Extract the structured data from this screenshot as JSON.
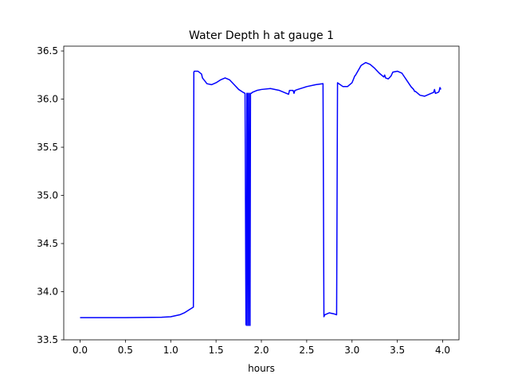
{
  "chart_data": {
    "type": "line",
    "title": "Water Depth h at gauge 1",
    "xlabel": "hours",
    "ylabel": "",
    "xlim": [
      -0.18,
      4.18
    ],
    "ylim": [
      33.5,
      36.55
    ],
    "x_ticks": [
      0.0,
      0.5,
      1.0,
      1.5,
      2.0,
      2.5,
      3.0,
      3.5,
      4.0
    ],
    "x_tick_labels": [
      "0.0",
      "0.5",
      "1.0",
      "1.5",
      "2.0",
      "2.5",
      "3.0",
      "3.5",
      "4.0"
    ],
    "y_ticks": [
      33.5,
      34.0,
      34.5,
      35.0,
      35.5,
      36.0,
      36.5
    ],
    "y_tick_labels": [
      "33.5",
      "34.0",
      "34.5",
      "35.0",
      "35.5",
      "36.0",
      "36.5"
    ],
    "grid": false,
    "line_color": "#0000ff",
    "series": [
      {
        "x": [
          0.0,
          0.5,
          0.9,
          1.0,
          1.1,
          1.15,
          1.2,
          1.25,
          1.255,
          1.26,
          1.3,
          1.34,
          1.35,
          1.4,
          1.45,
          1.5,
          1.55,
          1.6,
          1.65,
          1.7,
          1.75,
          1.8,
          1.82,
          1.83,
          1.835,
          1.84,
          1.845,
          1.85,
          1.855,
          1.86,
          1.865,
          1.87,
          1.875,
          1.88,
          1.885,
          1.89,
          1.9,
          1.95,
          2.0,
          2.1,
          2.2,
          2.3,
          2.31,
          2.35,
          2.36,
          2.37,
          2.4,
          2.5,
          2.6,
          2.68,
          2.69,
          2.7,
          2.75,
          2.8,
          2.83,
          2.84,
          2.9,
          2.95,
          3.0,
          3.03,
          3.04,
          3.1,
          3.15,
          3.2,
          3.25,
          3.3,
          3.35,
          3.36,
          3.37,
          3.4,
          3.43,
          3.44,
          3.45,
          3.5,
          3.55,
          3.6,
          3.65,
          3.68,
          3.69,
          3.7,
          3.75,
          3.8,
          3.85,
          3.9,
          3.91,
          3.92,
          3.95,
          3.96,
          3.97,
          3.98
        ],
        "y": [
          33.73,
          33.73,
          33.735,
          33.74,
          33.76,
          33.78,
          33.81,
          33.84,
          36.28,
          36.29,
          36.29,
          36.26,
          36.22,
          36.16,
          36.15,
          36.17,
          36.2,
          36.22,
          36.2,
          36.15,
          36.1,
          36.07,
          36.06,
          33.66,
          33.65,
          36.06,
          36.06,
          33.65,
          33.65,
          36.06,
          36.06,
          33.65,
          33.65,
          36.06,
          36.06,
          36.06,
          36.07,
          36.09,
          36.1,
          36.11,
          36.09,
          36.05,
          36.09,
          36.09,
          36.06,
          36.09,
          36.1,
          36.13,
          36.15,
          36.16,
          33.74,
          33.76,
          33.78,
          33.77,
          33.76,
          36.17,
          36.13,
          36.13,
          36.17,
          36.24,
          36.25,
          36.35,
          36.38,
          36.36,
          36.32,
          36.27,
          36.23,
          36.25,
          36.22,
          36.21,
          36.24,
          36.26,
          36.28,
          36.29,
          36.27,
          36.2,
          36.13,
          36.1,
          36.08,
          36.08,
          36.04,
          36.03,
          36.05,
          36.07,
          36.1,
          36.06,
          36.07,
          36.08,
          36.12,
          36.1
        ]
      }
    ]
  }
}
